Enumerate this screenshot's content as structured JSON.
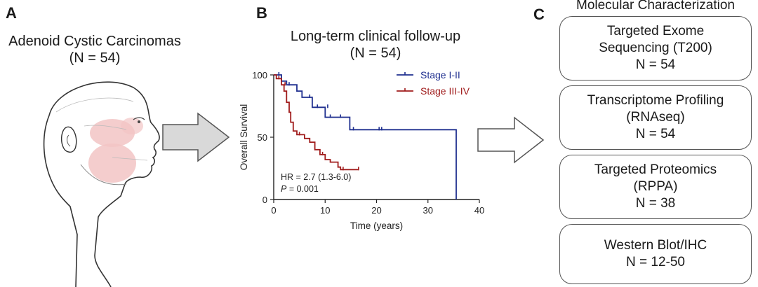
{
  "panel_a": {
    "letter": "A",
    "title_line1": "Adenoid Cystic Carcinomas",
    "title_line2": "(N = 54)"
  },
  "panel_b": {
    "letter": "B",
    "title_line1": "Long-term clinical follow-up",
    "title_line2": "(N = 54)",
    "annotation_hr": "HR = 2.7 (1.3-6.0)",
    "annotation_p_label": "P",
    "annotation_p_value": " = 0.001"
  },
  "panel_c": {
    "letter": "C",
    "title": "Molecular Characterization",
    "boxes": [
      {
        "lines": [
          "Targeted Exome",
          "Sequencing (T200)",
          "N = 54"
        ]
      },
      {
        "lines": [
          "Transcriptome Profiling",
          "(RNAseq)",
          "N = 54"
        ]
      },
      {
        "lines": [
          "Targeted Proteomics",
          "(RPPA)",
          "N = 38"
        ]
      },
      {
        "lines": [
          "Western Blot/IHC",
          "N = 12-50"
        ]
      }
    ]
  },
  "colors": {
    "stage_early": "#1f2f8f",
    "stage_late": "#a01c1c",
    "arrow_fill": "#d9d9d9",
    "head_tint": "#f2c4c4"
  },
  "icons": [
    "head-profile-icon",
    "right-arrow-icon",
    "outline-arrow-icon"
  ],
  "chart_data": {
    "type": "line",
    "subtype": "kaplan-meier",
    "xlabel": "Time (years)",
    "ylabel": "Overall Survival",
    "xlim": [
      0,
      40
    ],
    "ylim": [
      0,
      100
    ],
    "xticks": [
      0,
      10,
      20,
      30,
      40
    ],
    "yticks": [
      0,
      50,
      100
    ],
    "legend_position": "top-right",
    "series": [
      {
        "name": "Stage I-II",
        "color": "#1f2f8f",
        "steps": [
          [
            0,
            100
          ],
          [
            1.5,
            100
          ],
          [
            1.5,
            95
          ],
          [
            2.5,
            95
          ],
          [
            2.5,
            92
          ],
          [
            4.5,
            92
          ],
          [
            4.5,
            87
          ],
          [
            5.5,
            87
          ],
          [
            5.5,
            82
          ],
          [
            7.5,
            82
          ],
          [
            7.5,
            74
          ],
          [
            10,
            74
          ],
          [
            10,
            66
          ],
          [
            14.8,
            66
          ],
          [
            14.8,
            56
          ],
          [
            35.5,
            56
          ],
          [
            35.5,
            0
          ]
        ],
        "censored": [
          [
            1,
            100
          ],
          [
            3,
            92
          ],
          [
            7,
            82
          ],
          [
            8.5,
            74
          ],
          [
            10.5,
            74
          ],
          [
            11,
            66
          ],
          [
            13,
            66
          ],
          [
            15.5,
            56
          ],
          [
            20.5,
            56
          ],
          [
            21,
            56
          ]
        ]
      },
      {
        "name": "Stage III-IV",
        "color": "#a01c1c",
        "steps": [
          [
            0,
            100
          ],
          [
            0.5,
            100
          ],
          [
            0.5,
            97
          ],
          [
            1.5,
            97
          ],
          [
            1.5,
            92
          ],
          [
            2,
            92
          ],
          [
            2,
            87
          ],
          [
            2.5,
            87
          ],
          [
            2.5,
            78
          ],
          [
            3,
            78
          ],
          [
            3,
            70
          ],
          [
            3.3,
            70
          ],
          [
            3.3,
            62
          ],
          [
            3.8,
            62
          ],
          [
            3.8,
            55
          ],
          [
            4.5,
            55
          ],
          [
            4.5,
            52
          ],
          [
            6,
            52
          ],
          [
            6,
            49
          ],
          [
            7,
            49
          ],
          [
            7,
            46
          ],
          [
            8,
            46
          ],
          [
            8,
            40
          ],
          [
            9,
            40
          ],
          [
            9,
            36
          ],
          [
            10,
            36
          ],
          [
            10,
            32
          ],
          [
            11,
            32
          ],
          [
            11,
            30
          ],
          [
            12.5,
            30
          ],
          [
            12.5,
            26
          ],
          [
            13,
            26
          ],
          [
            13,
            24
          ],
          [
            16.5,
            24
          ]
        ],
        "censored": [
          [
            1,
            97
          ],
          [
            2.2,
            92
          ],
          [
            5,
            52
          ],
          [
            9.5,
            36
          ],
          [
            13.5,
            24
          ],
          [
            16.5,
            24
          ]
        ]
      }
    ]
  }
}
